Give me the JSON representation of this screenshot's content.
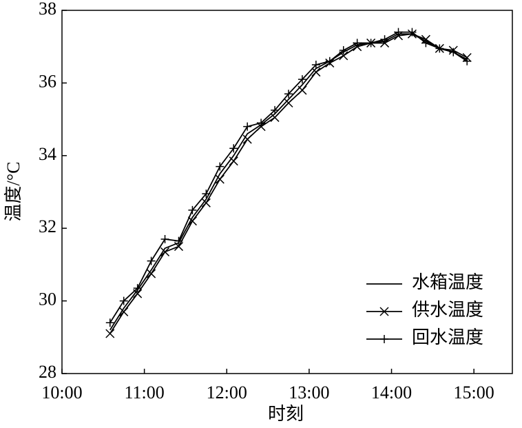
{
  "chart_data": {
    "type": "line",
    "xlabel": "时刻",
    "ylabel": "温度/°C",
    "x": [
      "10:35",
      "10:45",
      "10:55",
      "11:05",
      "11:15",
      "11:25",
      "11:35",
      "11:45",
      "11:55",
      "12:05",
      "12:15",
      "12:25",
      "12:35",
      "12:45",
      "12:55",
      "13:05",
      "13:15",
      "13:25",
      "13:35",
      "13:45",
      "13:55",
      "14:05",
      "14:15",
      "14:25",
      "14:35",
      "14:45",
      "14:55"
    ],
    "series": [
      {
        "name": "水箱温度",
        "color": "#000000",
        "marker": "none",
        "values": [
          29.2,
          29.8,
          30.3,
          30.85,
          31.45,
          31.6,
          32.3,
          32.8,
          33.5,
          34.0,
          34.6,
          34.85,
          35.15,
          35.55,
          35.95,
          36.4,
          36.6,
          36.85,
          37.05,
          37.1,
          37.15,
          37.35,
          37.35,
          37.15,
          36.95,
          36.85,
          36.65
        ]
      },
      {
        "name": "供水温度",
        "color": "#000000",
        "marker": "x",
        "values": [
          29.1,
          29.7,
          30.2,
          30.75,
          31.35,
          31.5,
          32.2,
          32.7,
          33.35,
          33.85,
          34.45,
          34.8,
          35.05,
          35.45,
          35.8,
          36.3,
          36.55,
          36.75,
          37.0,
          37.1,
          37.1,
          37.3,
          37.35,
          37.2,
          36.95,
          36.9,
          36.7
        ]
      },
      {
        "name": "回水温度",
        "color": "#000000",
        "marker": "+",
        "values": [
          29.4,
          30.0,
          30.35,
          31.1,
          31.7,
          31.65,
          32.5,
          32.95,
          33.7,
          34.2,
          34.8,
          34.9,
          35.25,
          35.7,
          36.1,
          36.5,
          36.6,
          36.9,
          37.1,
          37.1,
          37.2,
          37.4,
          37.4,
          37.1,
          36.95,
          36.85,
          36.6
        ]
      }
    ],
    "xlim": [
      "10:00",
      "15:28"
    ],
    "xticks": [
      "10:00",
      "11:00",
      "12:00",
      "13:00",
      "14:00",
      "15:00"
    ],
    "ylim": [
      28,
      38
    ],
    "yticks": [
      28,
      30,
      32,
      34,
      36,
      38
    ],
    "legend": "lower right"
  }
}
